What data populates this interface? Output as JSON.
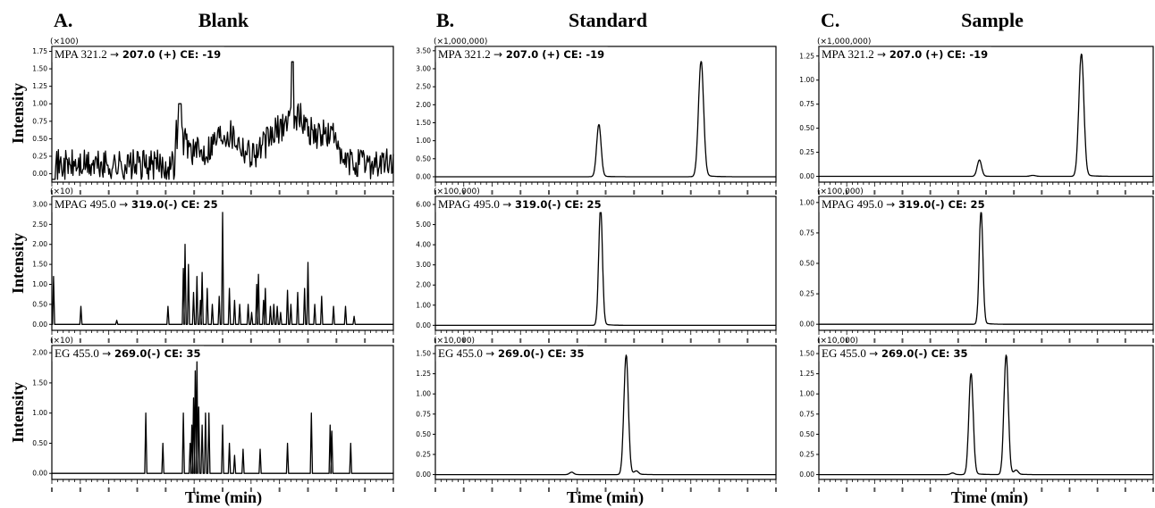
{
  "columns": [
    {
      "letter": "A.",
      "title": "Blank",
      "xlabel": "Time (min)"
    },
    {
      "letter": "B.",
      "title": "Standard",
      "xlabel": "Time (min)"
    },
    {
      "letter": "C.",
      "title": "Sample",
      "xlabel": "Time (min)"
    }
  ],
  "ylabel": "Intensity",
  "chart_data": [
    {
      "type": "line",
      "column": "Blank",
      "row": "MPA",
      "multiplier": "(×100)",
      "transition": {
        "prefix": "MPA 321.2",
        "arrow": "→",
        "bold": "207.0 (+) CE: -19"
      },
      "yticks": [
        "0.00",
        "0.25",
        "0.50",
        "0.75",
        "1.00",
        "1.25",
        "1.50",
        "1.75"
      ],
      "ylim": [
        -0.12,
        1.82
      ],
      "trace": "noise",
      "description": "noisy baseline, elevated hump 0.4-0.9 in mid region, peak ~1.6 near x=0.7"
    },
    {
      "type": "line",
      "column": "Blank",
      "row": "MPAG",
      "multiplier": "(×10)",
      "transition": {
        "prefix": "MPAG 495.0",
        "arrow": "→",
        "bold": "319.0(-) CE: 25"
      },
      "yticks": [
        "0.00",
        "0.50",
        "1.00",
        "1.50",
        "2.00",
        "2.50",
        "3.00"
      ],
      "ylim": [
        -0.15,
        3.2
      ],
      "trace": "spikes",
      "spikes": [
        [
          0.005,
          1.2
        ],
        [
          0.085,
          0.45
        ],
        [
          0.19,
          0.1
        ],
        [
          0.34,
          0.45
        ],
        [
          0.385,
          1.4
        ],
        [
          0.39,
          2.0
        ],
        [
          0.4,
          1.5
        ],
        [
          0.415,
          0.8
        ],
        [
          0.425,
          1.2
        ],
        [
          0.435,
          0.6
        ],
        [
          0.44,
          1.3
        ],
        [
          0.455,
          0.9
        ],
        [
          0.47,
          0.5
        ],
        [
          0.49,
          0.7
        ],
        [
          0.5,
          2.8
        ],
        [
          0.52,
          0.9
        ],
        [
          0.535,
          0.6
        ],
        [
          0.55,
          0.5
        ],
        [
          0.575,
          0.5
        ],
        [
          0.585,
          0.3
        ],
        [
          0.6,
          1.0
        ],
        [
          0.605,
          1.25
        ],
        [
          0.62,
          0.6
        ],
        [
          0.625,
          0.9
        ],
        [
          0.64,
          0.45
        ],
        [
          0.65,
          0.5
        ],
        [
          0.66,
          0.45
        ],
        [
          0.67,
          0.3
        ],
        [
          0.69,
          0.85
        ],
        [
          0.7,
          0.5
        ],
        [
          0.72,
          0.8
        ],
        [
          0.74,
          0.9
        ],
        [
          0.75,
          1.55
        ],
        [
          0.77,
          0.5
        ],
        [
          0.79,
          0.7
        ],
        [
          0.825,
          0.45
        ],
        [
          0.86,
          0.45
        ],
        [
          0.885,
          0.2
        ]
      ]
    },
    {
      "type": "line",
      "column": "Blank",
      "row": "EG",
      "multiplier": "(×10)",
      "transition": {
        "prefix": "EG 455.0",
        "arrow": "→",
        "bold": "269.0(-) CE: 35"
      },
      "yticks": [
        "0.00",
        "0.50",
        "1.00",
        "1.50",
        "2.00"
      ],
      "ylim": [
        -0.1,
        2.12
      ],
      "trace": "spikes",
      "spikes": [
        [
          0.275,
          1.0
        ],
        [
          0.325,
          0.5
        ],
        [
          0.385,
          1.0
        ],
        [
          0.405,
          0.5
        ],
        [
          0.41,
          0.8
        ],
        [
          0.415,
          1.25
        ],
        [
          0.42,
          1.7
        ],
        [
          0.425,
          1.85
        ],
        [
          0.43,
          1.1
        ],
        [
          0.44,
          0.8
        ],
        [
          0.45,
          1.0
        ],
        [
          0.46,
          1.0
        ],
        [
          0.5,
          0.8
        ],
        [
          0.52,
          0.5
        ],
        [
          0.535,
          0.3
        ],
        [
          0.56,
          0.4
        ],
        [
          0.61,
          0.4
        ],
        [
          0.69,
          0.5
        ],
        [
          0.76,
          1.0
        ],
        [
          0.815,
          0.8
        ],
        [
          0.82,
          0.7
        ],
        [
          0.875,
          0.5
        ]
      ]
    },
    {
      "type": "line",
      "column": "Standard",
      "row": "MPA",
      "multiplier": "(×1,000,000)",
      "transition": {
        "prefix": "MPA 321.2",
        "arrow": "→",
        "bold": "207.0 (+) CE: -19"
      },
      "yticks": [
        "0.00",
        "0.50",
        "1.00",
        "1.50",
        "2.00",
        "2.50",
        "3.00",
        "3.50"
      ],
      "ylim": [
        -0.15,
        3.62
      ],
      "trace": "peaks",
      "peaks": [
        [
          0.48,
          1.45,
          0.0065
        ],
        [
          0.78,
          3.2,
          0.0075
        ]
      ]
    },
    {
      "type": "line",
      "column": "Standard",
      "row": "MPAG",
      "multiplier": "(×100,000)",
      "transition": {
        "prefix": "MPAG 495.0",
        "arrow": "→",
        "bold": "319.0(-) CE: 25"
      },
      "yticks": [
        "0.00",
        "1.00",
        "2.00",
        "3.00",
        "4.00",
        "5.00",
        "6.00"
      ],
      "ylim": [
        -0.25,
        6.4
      ],
      "trace": "peaks",
      "peaks": [
        [
          0.485,
          5.8,
          0.0055
        ]
      ]
    },
    {
      "type": "line",
      "column": "Standard",
      "row": "EG",
      "multiplier": "(×10,000)",
      "transition": {
        "prefix": "EG 455.0",
        "arrow": "→",
        "bold": "269.0(-) CE: 35"
      },
      "yticks": [
        "0.00",
        "0.25",
        "0.50",
        "0.75",
        "1.00",
        "1.25",
        "1.50"
      ],
      "ylim": [
        -0.06,
        1.6
      ],
      "trace": "peaks",
      "peaks": [
        [
          0.4,
          0.03,
          0.006
        ],
        [
          0.56,
          1.48,
          0.0065
        ],
        [
          0.59,
          0.04,
          0.006
        ]
      ]
    },
    {
      "type": "line",
      "column": "Sample",
      "row": "MPA",
      "multiplier": "(×1,000,000)",
      "transition": {
        "prefix": "MPA 321.2",
        "arrow": "→",
        "bold": "207.0 (+) CE: -19"
      },
      "yticks": [
        "0.00",
        "0.25",
        "0.50",
        "0.75",
        "1.00",
        "1.25"
      ],
      "ylim": [
        -0.06,
        1.35
      ],
      "trace": "peaks",
      "peaks": [
        [
          0.48,
          0.17,
          0.0065
        ],
        [
          0.64,
          0.01,
          0.008
        ],
        [
          0.785,
          1.27,
          0.0075
        ]
      ]
    },
    {
      "type": "line",
      "column": "Sample",
      "row": "MPAG",
      "multiplier": "(×100,000)",
      "transition": {
        "prefix": "MPAG 495.0",
        "arrow": "→",
        "bold": "319.0(-) CE: 25"
      },
      "yticks": [
        "0.00",
        "0.25",
        "0.50",
        "0.75",
        "1.00"
      ],
      "ylim": [
        -0.05,
        1.05
      ],
      "trace": "peaks",
      "peaks": [
        [
          0.485,
          0.93,
          0.0055
        ]
      ]
    },
    {
      "type": "line",
      "column": "Sample",
      "row": "EG",
      "multiplier": "(×10,000)",
      "transition": {
        "prefix": "EG 455.0",
        "arrow": "→",
        "bold": "269.0(-) CE: 35"
      },
      "yticks": [
        "0.00",
        "0.25",
        "0.50",
        "0.75",
        "1.00",
        "1.25",
        "1.50"
      ],
      "ylim": [
        -0.06,
        1.6
      ],
      "trace": "peaks",
      "peaks": [
        [
          0.4,
          0.02,
          0.006
        ],
        [
          0.455,
          1.25,
          0.0065
        ],
        [
          0.56,
          1.48,
          0.0065
        ],
        [
          0.59,
          0.05,
          0.006
        ]
      ]
    }
  ]
}
